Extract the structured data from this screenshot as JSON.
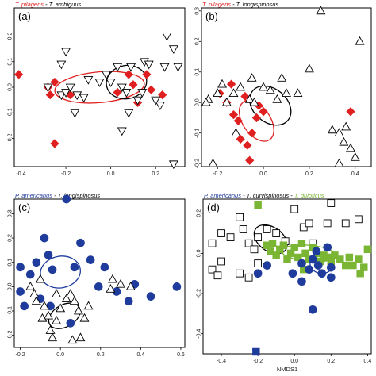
{
  "colors": {
    "red": "#e02020",
    "blue": "#1f3c9c",
    "green": "#7ab534",
    "black": "#000000"
  },
  "chart_data": [
    {
      "type": "scatter",
      "panel_label": "(a)",
      "title_parts": [
        {
          "text": "T. pilagens",
          "color": "#e02020"
        },
        {
          "text": " - ",
          "color": "#000000"
        },
        {
          "text": "T. ambiguus",
          "color": "#000000"
        }
      ],
      "xlabel": "",
      "xlim": [
        -0.43,
        0.33
      ],
      "ylim": [
        -0.31,
        0.31
      ],
      "xticks": [
        -0.4,
        -0.2,
        0.0,
        0.2
      ],
      "yticks": [
        -0.2,
        -0.1,
        0.0,
        0.1,
        0.2
      ],
      "series": [
        {
          "color": "#e02020",
          "marker": "diamond",
          "filled": true,
          "points": [
            [
              -0.41,
              0.05
            ],
            [
              -0.28,
              0.0
            ],
            [
              -0.27,
              -0.03
            ],
            [
              -0.25,
              0.02
            ],
            [
              -0.25,
              -0.22
            ],
            [
              -0.18,
              -0.03
            ],
            [
              0.03,
              -0.02
            ],
            [
              0.08,
              0.05
            ],
            [
              0.1,
              0.01
            ],
            [
              0.12,
              -0.06
            ],
            [
              0.18,
              -0.01
            ],
            [
              0.16,
              0.05
            ],
            [
              0.23,
              -0.03
            ]
          ]
        },
        {
          "color": "#000000",
          "marker": "triangle-down",
          "filled": false,
          "points": [
            [
              -0.28,
              0.0
            ],
            [
              -0.22,
              -0.03
            ],
            [
              -0.2,
              -0.02
            ],
            [
              -0.18,
              0.0
            ],
            [
              -0.15,
              -0.03
            ],
            [
              -0.12,
              -0.04
            ],
            [
              -0.16,
              -0.1
            ],
            [
              -0.1,
              0.03
            ],
            [
              -0.05,
              0.02
            ],
            [
              -0.02,
              0.05
            ],
            [
              0.0,
              0.02
            ],
            [
              0.03,
              0.08
            ],
            [
              0.05,
              0.0
            ],
            [
              0.07,
              -0.02
            ],
            [
              0.09,
              0.08
            ],
            [
              0.12,
              -0.05
            ],
            [
              0.14,
              -0.02
            ],
            [
              0.15,
              0.1
            ],
            [
              0.17,
              0.09
            ],
            [
              0.2,
              -0.05
            ],
            [
              0.22,
              -0.07
            ],
            [
              0.24,
              0.08
            ],
            [
              0.25,
              0.2
            ],
            [
              0.28,
              0.15
            ],
            [
              0.3,
              0.08
            ],
            [
              0.05,
              -0.17
            ],
            [
              0.08,
              -0.1
            ],
            [
              -0.2,
              0.14
            ],
            [
              -0.22,
              0.09
            ],
            [
              0.28,
              -0.3
            ]
          ]
        }
      ],
      "ellipses": [
        {
          "color": "#e02020",
          "cx": -0.05,
          "cy": 0.0,
          "rx": 0.2,
          "ry": 0.06,
          "angle": 5
        },
        {
          "color": "#000000",
          "cx": 0.07,
          "cy": 0.02,
          "rx": 0.09,
          "ry": 0.065,
          "angle": 10
        }
      ]
    },
    {
      "type": "scatter",
      "panel_label": "(b)",
      "title_parts": [
        {
          "text": "T. pilagens",
          "color": "#e02020"
        },
        {
          "text": " - ",
          "color": "#000000"
        },
        {
          "text": "T. longispinosus",
          "color": "#000000"
        }
      ],
      "xlabel": "",
      "xlim": [
        -0.27,
        0.47
      ],
      "ylim": [
        -0.21,
        0.31
      ],
      "xticks": [
        -0.2,
        0.0,
        0.2,
        0.4
      ],
      "yticks": [
        -0.2,
        -0.1,
        0.0,
        0.1,
        0.2,
        0.3
      ],
      "series": [
        {
          "color": "#e02020",
          "marker": "diamond",
          "filled": true,
          "points": [
            [
              -0.19,
              0.03
            ],
            [
              -0.16,
              0.0
            ],
            [
              -0.14,
              0.06
            ],
            [
              -0.13,
              -0.04
            ],
            [
              -0.11,
              -0.06
            ],
            [
              -0.1,
              -0.12
            ],
            [
              -0.08,
              0.02
            ],
            [
              -0.07,
              -0.14
            ],
            [
              -0.06,
              -0.19
            ],
            [
              -0.05,
              -0.1
            ],
            [
              -0.03,
              -0.05
            ],
            [
              -0.02,
              -0.01
            ],
            [
              0.0,
              -0.03
            ],
            [
              0.38,
              -0.03
            ]
          ]
        },
        {
          "color": "#000000",
          "marker": "triangle-up",
          "filled": false,
          "points": [
            [
              -0.24,
              0.01
            ],
            [
              -0.2,
              0.03
            ],
            [
              -0.18,
              0.06
            ],
            [
              -0.16,
              0.0
            ],
            [
              -0.13,
              0.03
            ],
            [
              -0.12,
              -0.1
            ],
            [
              -0.1,
              0.05
            ],
            [
              -0.06,
              0.01
            ],
            [
              -0.04,
              0.0
            ],
            [
              0.0,
              0.05
            ],
            [
              0.03,
              0.04
            ],
            [
              0.06,
              0.01
            ],
            [
              0.1,
              0.03
            ],
            [
              0.15,
              0.03
            ],
            [
              0.2,
              0.11
            ],
            [
              0.25,
              0.3
            ],
            [
              0.3,
              -0.09
            ],
            [
              0.33,
              -0.1
            ],
            [
              0.35,
              -0.13
            ],
            [
              0.36,
              -0.08
            ],
            [
              0.38,
              -0.15
            ],
            [
              0.4,
              -0.18
            ],
            [
              0.33,
              -0.2
            ],
            [
              0.42,
              0.2
            ],
            [
              -0.22,
              -0.2
            ],
            [
              -0.25,
              0.0
            ],
            [
              0.08,
              0.08
            ],
            [
              -0.05,
              0.08
            ]
          ]
        }
      ],
      "ellipses": [
        {
          "color": "#e02020",
          "cx": -0.03,
          "cy": -0.06,
          "rx": 0.1,
          "ry": 0.045,
          "angle": -55
        },
        {
          "color": "#000000",
          "cx": 0.03,
          "cy": -0.01,
          "rx": 0.1,
          "ry": 0.055,
          "angle": -40
        }
      ]
    },
    {
      "type": "scatter",
      "panel_label": "(c)",
      "title_parts": [
        {
          "text": "P. americanus",
          "color": "#1f3c9c"
        },
        {
          "text": " - ",
          "color": "#000000"
        },
        {
          "text": "T. longispinosus",
          "color": "#000000"
        }
      ],
      "xlabel": "",
      "xlim": [
        -0.23,
        0.62
      ],
      "ylim": [
        -0.25,
        0.36
      ],
      "xticks": [
        -0.2,
        0.0,
        0.2,
        0.4,
        0.6
      ],
      "yticks": [
        -0.2,
        -0.1,
        0.0,
        0.1,
        0.2,
        0.3
      ],
      "series": [
        {
          "color": "#1f3c9c",
          "marker": "circle",
          "filled": true,
          "points": [
            [
              -0.2,
              0.08
            ],
            [
              -0.2,
              -0.02
            ],
            [
              -0.15,
              0.05
            ],
            [
              -0.12,
              0.1
            ],
            [
              -0.1,
              -0.05
            ],
            [
              -0.08,
              0.2
            ],
            [
              -0.06,
              0.13
            ],
            [
              -0.04,
              0.07
            ],
            [
              0.03,
              0.36
            ],
            [
              0.1,
              0.18
            ],
            [
              0.15,
              0.11
            ],
            [
              0.19,
              0.0
            ],
            [
              0.22,
              0.08
            ],
            [
              0.28,
              -0.02
            ],
            [
              0.34,
              -0.06
            ],
            [
              0.37,
              0.01
            ],
            [
              0.58,
              0.0
            ],
            [
              0.07,
              0.08
            ],
            [
              -0.05,
              -0.08
            ],
            [
              -0.18,
              -0.08
            ],
            [
              0.45,
              -0.04
            ],
            [
              0.05,
              -0.15
            ]
          ]
        },
        {
          "color": "#000000",
          "marker": "triangle-up",
          "filled": false,
          "points": [
            [
              -0.15,
              0.0
            ],
            [
              -0.13,
              -0.03
            ],
            [
              -0.12,
              -0.06
            ],
            [
              -0.1,
              0.03
            ],
            [
              -0.08,
              -0.08
            ],
            [
              -0.06,
              -0.12
            ],
            [
              -0.05,
              -0.18
            ],
            [
              -0.04,
              -0.21
            ],
            [
              -0.02,
              -0.14
            ],
            [
              0.0,
              -0.09
            ],
            [
              0.03,
              -0.05
            ],
            [
              0.05,
              -0.03
            ],
            [
              0.07,
              -0.06
            ],
            [
              0.09,
              -0.1
            ],
            [
              0.1,
              -0.21
            ],
            [
              0.12,
              -0.13
            ],
            [
              0.14,
              -0.08
            ],
            [
              0.25,
              -0.01
            ],
            [
              0.26,
              0.03
            ],
            [
              0.3,
              0.01
            ],
            [
              0.35,
              0.0
            ],
            [
              0.06,
              -0.22
            ],
            [
              -0.02,
              -0.03
            ],
            [
              -0.09,
              -0.13
            ]
          ]
        }
      ],
      "ellipses": [
        {
          "color": "#1f3c9c",
          "cx": 0.0,
          "cy": 0.06,
          "rx": 0.1,
          "ry": 0.065,
          "angle": 10
        },
        {
          "color": "#000000",
          "cx": 0.02,
          "cy": -0.12,
          "rx": 0.085,
          "ry": 0.045,
          "angle": 30
        }
      ]
    },
    {
      "type": "scatter",
      "panel_label": "(d)",
      "title_parts": [
        {
          "text": "P. americanus",
          "color": "#1f3c9c"
        },
        {
          "text": " - ",
          "color": "#000000"
        },
        {
          "text": "T. curvispinosus",
          "color": "#000000"
        },
        {
          "text": " - ",
          "color": "#000000"
        },
        {
          "text": "T. duloticus",
          "color": "#7ab534"
        }
      ],
      "xlabel": "NMDS1",
      "xlim": [
        -0.5,
        0.42
      ],
      "ylim": [
        -0.5,
        0.27
      ],
      "xticks": [
        -0.4,
        -0.2,
        0.0,
        0.2,
        0.4
      ],
      "yticks": [
        -0.4,
        -0.2,
        0.0,
        0.2
      ],
      "series": [
        {
          "color": "#000000",
          "marker": "square",
          "filled": false,
          "points": [
            [
              -0.45,
              0.05
            ],
            [
              -0.4,
              0.1
            ],
            [
              -0.35,
              0.08
            ],
            [
              -0.3,
              0.18
            ],
            [
              -0.28,
              0.12
            ],
            [
              -0.25,
              0.05
            ],
            [
              -0.22,
              0.02
            ],
            [
              -0.2,
              0.08
            ],
            [
              -0.15,
              0.12
            ],
            [
              -0.1,
              0.1
            ],
            [
              -0.05,
              0.06
            ],
            [
              0.0,
              0.22
            ],
            [
              0.05,
              0.13
            ],
            [
              0.08,
              0.15
            ],
            [
              0.18,
              0.15
            ],
            [
              0.2,
              0.25
            ],
            [
              0.28,
              0.15
            ],
            [
              0.35,
              0.17
            ],
            [
              -0.45,
              -0.08
            ],
            [
              -0.4,
              -0.04
            ],
            [
              -0.42,
              -0.11
            ],
            [
              -0.3,
              -0.1
            ],
            [
              -0.25,
              -0.12
            ],
            [
              -0.2,
              -0.05
            ],
            [
              0.1,
              0.05
            ]
          ]
        },
        {
          "color": "#7ab534",
          "marker": "square",
          "filled": true,
          "points": [
            [
              -0.2,
              0.24
            ],
            [
              -0.15,
              0.04
            ],
            [
              -0.13,
              0.01
            ],
            [
              -0.1,
              -0.01
            ],
            [
              -0.08,
              0.02
            ],
            [
              -0.06,
              0.04
            ],
            [
              -0.04,
              -0.03
            ],
            [
              -0.02,
              0.0
            ],
            [
              0.0,
              0.03
            ],
            [
              0.02,
              -0.02
            ],
            [
              0.04,
              0.05
            ],
            [
              0.06,
              0.0
            ],
            [
              0.08,
              -0.03
            ],
            [
              0.1,
              0.03
            ],
            [
              0.12,
              0.0
            ],
            [
              0.14,
              -0.04
            ],
            [
              0.16,
              -0.01
            ],
            [
              0.18,
              -0.02
            ],
            [
              0.2,
              -0.04
            ],
            [
              0.22,
              -0.01
            ],
            [
              0.25,
              -0.03
            ],
            [
              0.28,
              -0.06
            ],
            [
              0.3,
              -0.02
            ],
            [
              0.32,
              -0.06
            ],
            [
              0.35,
              -0.03
            ],
            [
              0.38,
              -0.07
            ],
            [
              0.4,
              0.02
            ],
            [
              0.36,
              -0.1
            ],
            [
              -0.12,
              0.05
            ],
            [
              0.05,
              -0.08
            ]
          ]
        },
        {
          "color": "#1f3c9c",
          "marker": "circle",
          "filled": true,
          "points": [
            [
              -0.15,
              -0.06
            ],
            [
              0.04,
              -0.05
            ],
            [
              0.08,
              -0.08
            ],
            [
              0.1,
              -0.03
            ],
            [
              0.13,
              -0.06
            ],
            [
              0.15,
              -0.1
            ],
            [
              0.18,
              0.03
            ],
            [
              0.2,
              -0.07
            ],
            [
              0.2,
              -0.12
            ],
            [
              -0.2,
              -0.1
            ],
            [
              0.1,
              -0.28
            ],
            [
              0.04,
              -0.14
            ],
            [
              0.12,
              0.01
            ],
            [
              -0.01,
              -0.1
            ]
          ]
        },
        {
          "color": "#1f3c9c",
          "marker": "square",
          "filled": true,
          "points": [
            [
              -0.21,
              -0.49
            ]
          ]
        }
      ],
      "ellipses": [
        {
          "color": "#000000",
          "cx": -0.13,
          "cy": 0.07,
          "rx": 0.1,
          "ry": 0.06,
          "angle": -35
        },
        {
          "color": "#7ab534",
          "cx": 0.08,
          "cy": 0.0,
          "rx": 0.15,
          "ry": 0.04,
          "angle": -5
        },
        {
          "color": "#1f3c9c",
          "cx": 0.15,
          "cy": -0.05,
          "rx": 0.065,
          "ry": 0.05,
          "angle": 0
        }
      ]
    }
  ]
}
